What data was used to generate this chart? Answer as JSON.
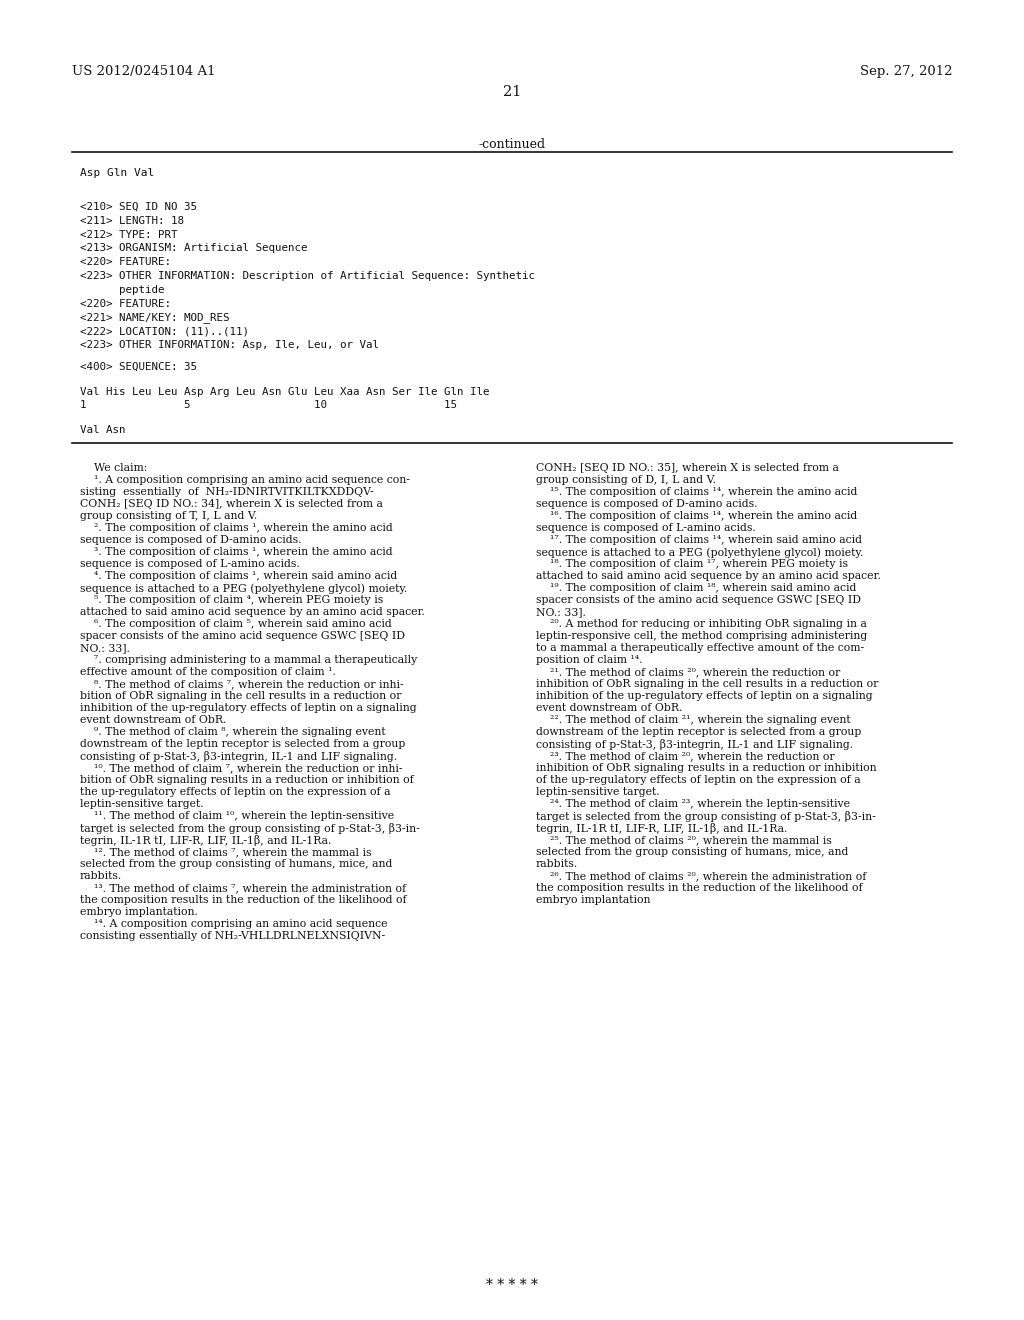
{
  "bg_color": "#ffffff",
  "header_left": "US 2012/0245104 A1",
  "header_right": "Sep. 27, 2012",
  "page_number": "21",
  "continued_label": "-continued",
  "top_sequence_text": "Asp Gln Val",
  "seq_block": [
    "<210> SEQ ID NO 35",
    "<211> LENGTH: 18",
    "<212> TYPE: PRT",
    "<213> ORGANISM: Artificial Sequence",
    "<220> FEATURE:",
    "<223> OTHER INFORMATION: Description of Artificial Sequence: Synthetic",
    "      peptide",
    "<220> FEATURE:",
    "<221> NAME/KEY: MOD_RES",
    "<222> LOCATION: (11)..(11)",
    "<223> OTHER INFORMATION: Asp, Ile, Leu, or Val"
  ],
  "seq400_label": "<400> SEQUENCE: 35",
  "seq_residues": "Val His Leu Leu Asp Arg Leu Asn Glu Leu Xaa Asn Ser Ile Gln Ile",
  "seq_numbers": "1               5                   10                  15",
  "seq_tail": "Val Asn",
  "claims_col1": [
    "    We claim:",
    "    ¹. A composition comprising an amino acid sequence con-",
    "sisting  essentially  of  NH₂-IDNIRTVITKILTKXDDQV-",
    "CONH₂ [SEQ ID NO.: 34], wherein X is selected from a",
    "group consisting of T, I, L and V.",
    "    ². The composition of claims ¹, wherein the amino acid",
    "sequence is composed of D-amino acids.",
    "    ³. The composition of claims ¹, wherein the amino acid",
    "sequence is composed of L-amino acids.",
    "    ⁴. The composition of claims ¹, wherein said amino acid",
    "sequence is attached to a PEG (polyethylene glycol) moiety.",
    "    ⁵. The composition of claim ⁴, wherein PEG moiety is",
    "attached to said amino acid sequence by an amino acid spacer.",
    "    ⁶. The composition of claim ⁵, wherein said amino acid",
    "spacer consists of the amino acid sequence GSWC [SEQ ID",
    "NO.: 33].",
    "    ⁷. comprising administering to a mammal a therapeutically",
    "effective amount of the composition of claim ¹.",
    "    ⁸. The method of claims ⁷, wherein the reduction or inhi-",
    "bition of ObR signaling in the cell results in a reduction or",
    "inhibition of the up-regulatory effects of leptin on a signaling",
    "event downstream of ObR.",
    "    ⁹. The method of claim ⁸, wherein the signaling event",
    "downstream of the leptin receptor is selected from a group",
    "consisting of p-Stat-3, β3-integrin, IL-1 and LIF signaling.",
    "    ¹⁰. The method of claim ⁷, wherein the reduction or inhi-",
    "bition of ObR signaling results in a reduction or inhibition of",
    "the up-regulatory effects of leptin on the expression of a",
    "leptin-sensitive target.",
    "    ¹¹. The method of claim ¹⁰, wherein the leptin-sensitive",
    "target is selected from the group consisting of p-Stat-3, β3-in-",
    "tegrin, IL-1R tI, LIF-R, LIF, IL-1β, and IL-1Ra.",
    "    ¹². The method of claims ⁷, wherein the mammal is",
    "selected from the group consisting of humans, mice, and",
    "rabbits.",
    "    ¹³. The method of claims ⁷, wherein the administration of",
    "the composition results in the reduction of the likelihood of",
    "embryo implantation.",
    "    ¹⁴. A composition comprising an amino acid sequence",
    "consisting essentially of NH₂-VHLLDRLNELXNSIQIVN-"
  ],
  "claims_col2": [
    "CONH₂ [SEQ ID NO.: 35], wherein X is selected from a",
    "group consisting of D, I, L and V.",
    "    ¹⁵. The composition of claims ¹⁴, wherein the amino acid",
    "sequence is composed of D-amino acids.",
    "    ¹⁶. The composition of claims ¹⁴, wherein the amino acid",
    "sequence is composed of L-amino acids.",
    "    ¹⁷. The composition of claims ¹⁴, wherein said amino acid",
    "sequence is attached to a PEG (polyethylene glycol) moiety.",
    "    ¹⁸. The composition of claim ¹⁷, wherein PEG moiety is",
    "attached to said amino acid sequence by an amino acid spacer.",
    "    ¹⁹. The composition of claim ¹⁸, wherein said amino acid",
    "spacer consists of the amino acid sequence GSWC [SEQ ID",
    "NO.: 33].",
    "    ²⁰. A method for reducing or inhibiting ObR signaling in a",
    "leptin-responsive cell, the method comprising administering",
    "to a mammal a therapeutically effective amount of the com-",
    "position of claim ¹⁴.",
    "    ²¹. The method of claims ²⁰, wherein the reduction or",
    "inhibition of ObR signaling in the cell results in a reduction or",
    "inhibition of the up-regulatory effects of leptin on a signaling",
    "event downstream of ObR.",
    "    ²². The method of claim ²¹, wherein the signaling event",
    "downstream of the leptin receptor is selected from a group",
    "consisting of p-Stat-3, β3-integrin, IL-1 and LIF signaling.",
    "    ²³. The method of claim ²⁰, wherein the reduction or",
    "inhibition of ObR signaling results in a reduction or inhibition",
    "of the up-regulatory effects of leptin on the expression of a",
    "leptin-sensitive target.",
    "    ²⁴. The method of claim ²³, wherein the leptin-sensitive",
    "target is selected from the group consisting of p-Stat-3, β3-in-",
    "tegrin, IL-1R tI, LIF-R, LIF, IL-1β, and IL-1Ra.",
    "    ²⁵. The method of claims ²⁰, wherein the mammal is",
    "selected from the group consisting of humans, mice, and",
    "rabbits.",
    "    ²⁶. The method of claims ²⁰, wherein the administration of",
    "the composition results in the reduction of the likelihood of",
    "embryo implantation"
  ],
  "footer_dots": "* * * * *"
}
